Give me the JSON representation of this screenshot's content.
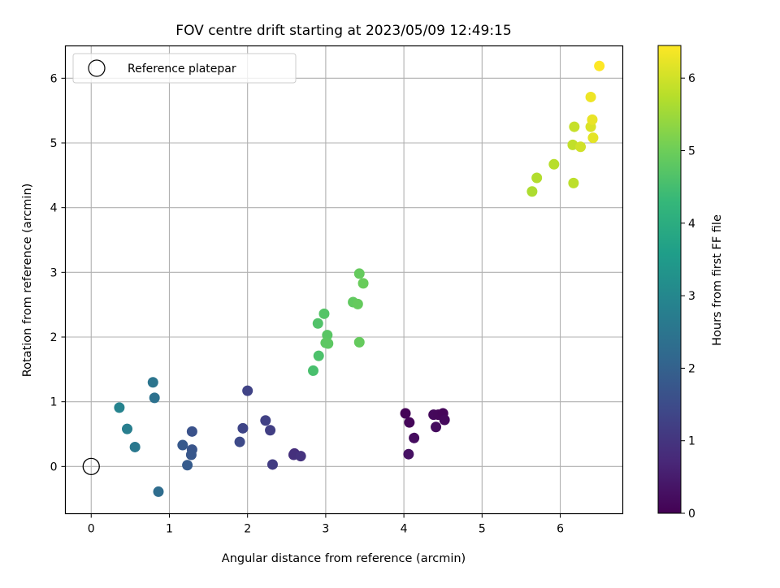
{
  "chart_data": {
    "type": "scatter",
    "title": "FOV centre drift starting at 2023/05/09 12:49:15",
    "xlabel": "Angular distance from reference (arcmin)",
    "ylabel": "Rotation from reference (arcmin)",
    "xlim": [
      -0.33,
      6.8
    ],
    "ylim": [
      -0.73,
      6.5
    ],
    "xticks": [
      0,
      1,
      2,
      3,
      4,
      5,
      6
    ],
    "yticks": [
      0,
      1,
      2,
      3,
      4,
      5,
      6
    ],
    "grid": true,
    "legend": {
      "placement": "top-left",
      "entries": [
        "Reference platepar"
      ]
    },
    "reference_point": {
      "x": 0,
      "y": 0
    },
    "colorbar": {
      "label": "Hours from first FF file",
      "min": 0,
      "max": 6.45,
      "ticks": [
        0,
        1,
        2,
        3,
        4,
        5,
        6
      ],
      "colormap": "viridis",
      "colors": [
        "#440154",
        "#482878",
        "#3e4989",
        "#31688e",
        "#26828e",
        "#1f9e89",
        "#35b779",
        "#6ece58",
        "#b5de2b",
        "#fde725"
      ]
    },
    "points": [
      {
        "x": 4.02,
        "y": 0.82,
        "h": 0.05
      },
      {
        "x": 4.07,
        "y": 0.68,
        "h": 0.1
      },
      {
        "x": 4.13,
        "y": 0.44,
        "h": 0.2
      },
      {
        "x": 4.06,
        "y": 0.19,
        "h": 0.3
      },
      {
        "x": 4.38,
        "y": 0.8,
        "h": 0.15
      },
      {
        "x": 4.44,
        "y": 0.8,
        "h": 0.12
      },
      {
        "x": 4.5,
        "y": 0.82,
        "h": 0.1
      },
      {
        "x": 4.52,
        "y": 0.72,
        "h": 0.15
      },
      {
        "x": 4.41,
        "y": 0.61,
        "h": 0.2
      },
      {
        "x": 2.6,
        "y": 0.2,
        "h": 0.85
      },
      {
        "x": 2.59,
        "y": 0.18,
        "h": 0.9
      },
      {
        "x": 2.68,
        "y": 0.16,
        "h": 0.95
      },
      {
        "x": 2.32,
        "y": 0.03,
        "h": 1.15
      },
      {
        "x": 2.29,
        "y": 0.56,
        "h": 1.2
      },
      {
        "x": 2.23,
        "y": 0.71,
        "h": 1.25
      },
      {
        "x": 2.0,
        "y": 1.17,
        "h": 1.3
      },
      {
        "x": 1.94,
        "y": 0.59,
        "h": 1.35
      },
      {
        "x": 1.9,
        "y": 0.38,
        "h": 1.45
      },
      {
        "x": 1.29,
        "y": 0.54,
        "h": 1.65
      },
      {
        "x": 1.29,
        "y": 0.26,
        "h": 1.7
      },
      {
        "x": 1.28,
        "y": 0.18,
        "h": 1.75
      },
      {
        "x": 1.17,
        "y": 0.33,
        "h": 1.8
      },
      {
        "x": 1.23,
        "y": 0.02,
        "h": 1.85
      },
      {
        "x": 0.86,
        "y": -0.39,
        "h": 2.3
      },
      {
        "x": 0.81,
        "y": 1.06,
        "h": 2.4
      },
      {
        "x": 0.79,
        "y": 1.3,
        "h": 2.5
      },
      {
        "x": 0.56,
        "y": 0.3,
        "h": 2.6
      },
      {
        "x": 0.46,
        "y": 0.58,
        "h": 2.75
      },
      {
        "x": 0.36,
        "y": 0.91,
        "h": 2.9
      },
      {
        "x": 2.84,
        "y": 1.48,
        "h": 4.55
      },
      {
        "x": 2.91,
        "y": 1.71,
        "h": 4.6
      },
      {
        "x": 2.9,
        "y": 2.21,
        "h": 4.65
      },
      {
        "x": 2.98,
        "y": 2.36,
        "h": 4.7
      },
      {
        "x": 3.02,
        "y": 2.03,
        "h": 4.75
      },
      {
        "x": 3.0,
        "y": 1.91,
        "h": 4.8
      },
      {
        "x": 3.03,
        "y": 1.9,
        "h": 4.8
      },
      {
        "x": 3.35,
        "y": 2.54,
        "h": 4.85
      },
      {
        "x": 3.41,
        "y": 2.51,
        "h": 4.9
      },
      {
        "x": 3.43,
        "y": 2.98,
        "h": 4.9
      },
      {
        "x": 3.48,
        "y": 2.83,
        "h": 4.95
      },
      {
        "x": 3.43,
        "y": 1.92,
        "h": 4.9
      },
      {
        "x": 5.64,
        "y": 4.25,
        "h": 5.65
      },
      {
        "x": 5.7,
        "y": 4.46,
        "h": 5.7
      },
      {
        "x": 5.92,
        "y": 4.67,
        "h": 5.75
      },
      {
        "x": 6.17,
        "y": 4.38,
        "h": 5.8
      },
      {
        "x": 6.16,
        "y": 4.97,
        "h": 5.85
      },
      {
        "x": 6.18,
        "y": 5.25,
        "h": 5.9
      },
      {
        "x": 6.26,
        "y": 4.94,
        "h": 6.0
      },
      {
        "x": 6.39,
        "y": 5.25,
        "h": 6.1
      },
      {
        "x": 6.42,
        "y": 5.08,
        "h": 6.2
      },
      {
        "x": 6.41,
        "y": 5.36,
        "h": 6.25
      },
      {
        "x": 6.39,
        "y": 5.71,
        "h": 6.3
      },
      {
        "x": 6.5,
        "y": 6.19,
        "h": 6.45
      }
    ]
  }
}
